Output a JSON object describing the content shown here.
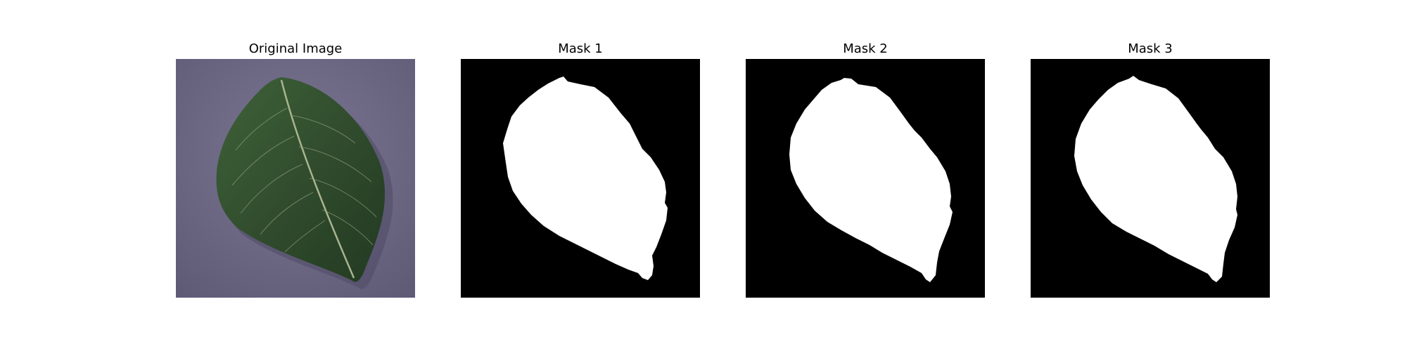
{
  "figure": {
    "panels": [
      {
        "title": "Original Image",
        "kind": "photo"
      },
      {
        "title": "Mask 1",
        "kind": "mask"
      },
      {
        "title": "Mask 2",
        "kind": "mask"
      },
      {
        "title": "Mask 3",
        "kind": "mask"
      }
    ]
  },
  "colors": {
    "background_photo": "#6f6a86",
    "leaf_dark": "#2f4a2c",
    "leaf_mid": "#3f6239",
    "leaf_vein": "#a9b48e",
    "mask_bg": "#000000",
    "mask_fg": "#ffffff"
  }
}
